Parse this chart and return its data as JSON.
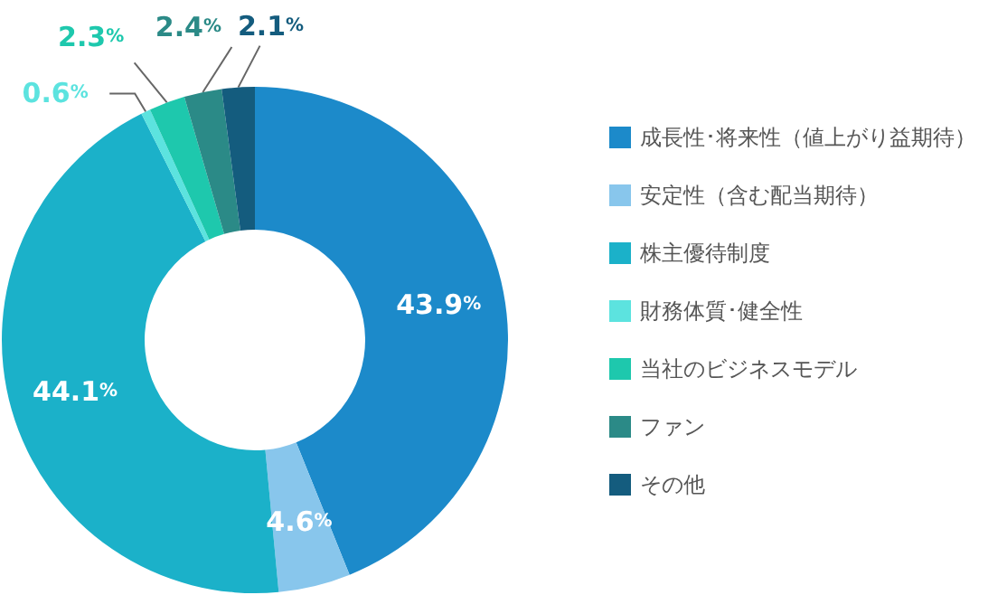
{
  "chart_data": {
    "type": "donut",
    "categories": [
      "成長性･将来性（値上がり益期待）",
      "安定性（含む配当期待）",
      "株主優待制度",
      "財務体質･健全性",
      "当社のビジネスモデル",
      "ファン",
      "その他"
    ],
    "values": [
      43.9,
      4.6,
      44.1,
      0.6,
      2.3,
      2.4,
      2.1
    ],
    "colors": [
      "#1c8aca",
      "#88c6ec",
      "#1bb1c9",
      "#5ce3df",
      "#1ec8ad",
      "#2b8a87",
      "#145c7e"
    ],
    "value_labels": [
      "43.9%",
      "4.6%",
      "44.1%",
      "0.6%",
      "2.3%",
      "2.4%",
      "2.1%"
    ],
    "legend": "right"
  }
}
